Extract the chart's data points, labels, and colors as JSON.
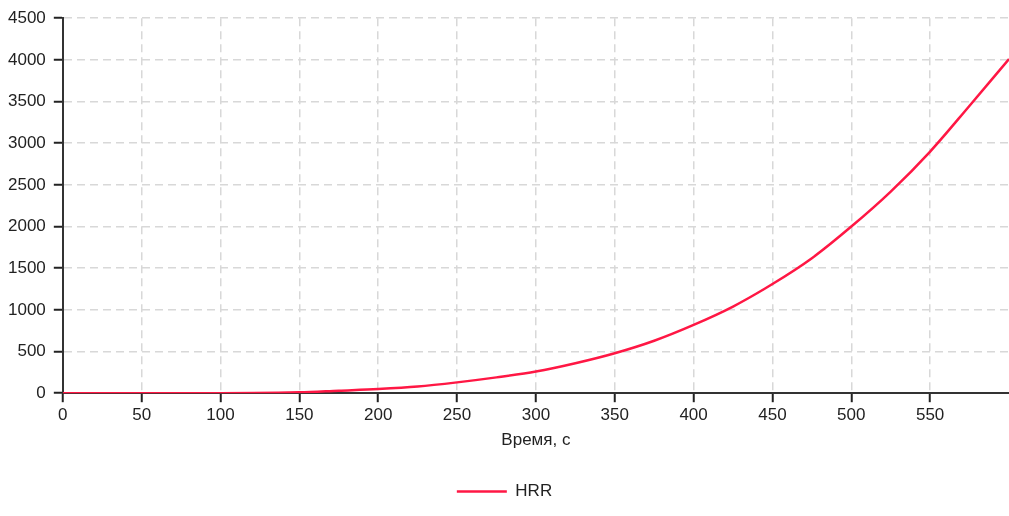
{
  "chart_data": {
    "type": "line",
    "xlabel": "Время, с",
    "x": [
      0,
      50,
      100,
      150,
      175,
      200,
      225,
      250,
      275,
      300,
      325,
      350,
      375,
      400,
      425,
      450,
      475,
      500,
      525,
      550,
      575,
      600
    ],
    "series": [
      {
        "name": "HRR",
        "color": "#ff1744",
        "values": [
          0,
          0,
          0,
          10,
          30,
          50,
          80,
          130,
          190,
          260,
          360,
          480,
          630,
          820,
          1040,
          1310,
          1620,
          2000,
          2420,
          2900,
          3450,
          4010
        ]
      }
    ],
    "xlim": [
      0,
      600
    ],
    "xticks": [
      0,
      50,
      100,
      150,
      200,
      250,
      300,
      350,
      400,
      450,
      500,
      550
    ],
    "ylim": [
      0,
      4500
    ],
    "yticks": [
      0,
      500,
      1000,
      1500,
      2000,
      2500,
      3000,
      3500,
      4000,
      4500
    ],
    "grid": true,
    "legend": "bottom",
    "marker": "none",
    "line_style": "solid"
  }
}
